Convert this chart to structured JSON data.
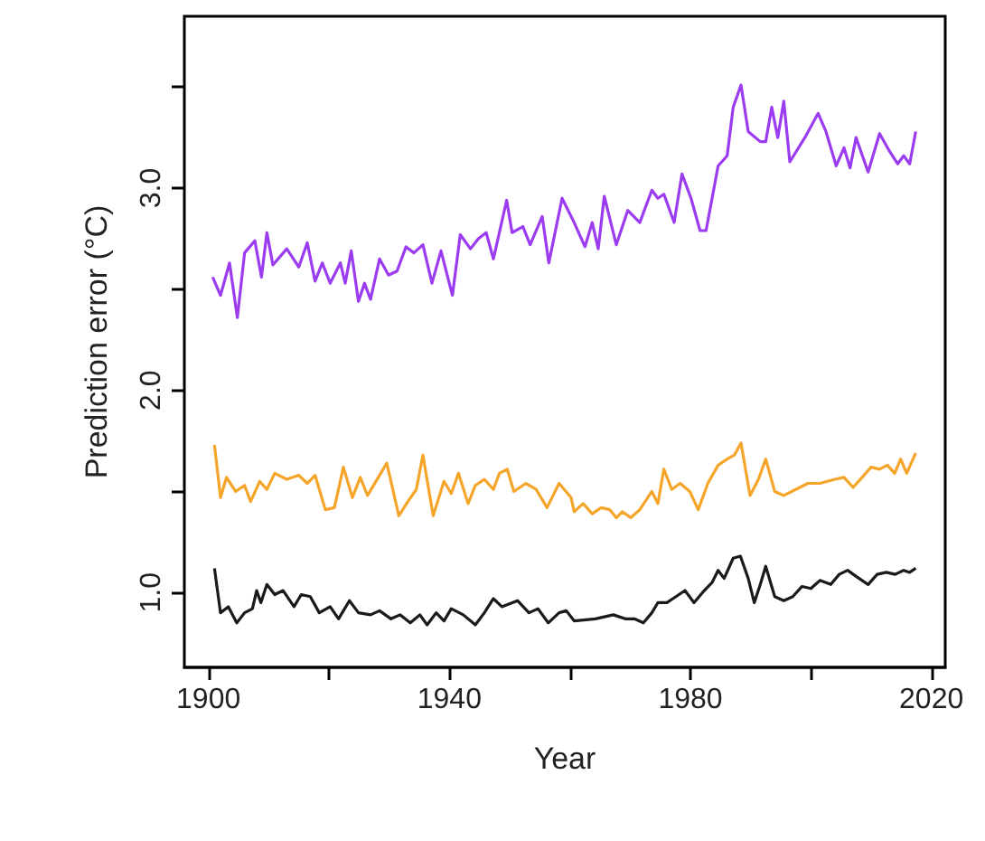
{
  "chart_data": {
    "type": "line",
    "xlabel": "Year",
    "ylabel": "Prediction error (°C)",
    "xlim": [
      1896,
      2022.3
    ],
    "ylim": [
      0.63,
      3.85
    ],
    "xticks": [
      1900,
      {
        "value": 1920,
        "label": null
      },
      1940,
      {
        "value": 1960,
        "label": null
      },
      1980,
      {
        "value": 2000,
        "label": null
      },
      2020
    ],
    "yticks": [
      {
        "value": 1,
        "label": "1.0"
      },
      {
        "value": 1.5,
        "label": null
      },
      {
        "value": 2,
        "label": "2.0"
      },
      {
        "value": 2.5,
        "label": null
      },
      {
        "value": 3,
        "label": "3.0"
      },
      {
        "value": 3.5,
        "label": null
      }
    ],
    "grid": false,
    "marker": "none",
    "series": [
      {
        "color": "#9b3cf0",
        "x": [
          1900.7,
          1902,
          1903.5,
          1904.8,
          1906,
          1907.7,
          1908.8,
          1909.7,
          1910.7,
          1913,
          1915,
          1916.4,
          1917.7,
          1918.9,
          1920.2,
          1921.9,
          1922.7,
          1923.7,
          1924.9,
          1925.9,
          1926.9,
          1928.4,
          1929.9,
          1931.3,
          1932.8,
          1934.1,
          1935.6,
          1937.1,
          1938.6,
          1940.5,
          1941.8,
          1943.5,
          1944.8,
          1946.1,
          1947.3,
          1949.5,
          1950.4,
          1952.2,
          1953.4,
          1955.4,
          1956.5,
          1958.7,
          1960.7,
          1962.5,
          1963.7,
          1964.7,
          1965.7,
          1967.7,
          1969.6,
          1971.6,
          1973.6,
          1974.6,
          1975.6,
          1977.3,
          1978.6,
          1980.1,
          1981.6,
          1982.6,
          1984.6,
          1986.1,
          1987.1,
          1988.4,
          1989.6,
          1991.6,
          1992.5,
          1993.5,
          1994.5,
          1995.5,
          1996.5,
          1999,
          2001.2,
          2002.5,
          2004.2,
          2005.5,
          2006.5,
          2007.5,
          2009.5,
          2011.4,
          2012.9,
          2014.4,
          2015.4,
          2016.4,
          2017.4
        ],
        "values": [
          2.56,
          2.47,
          2.63,
          2.36,
          2.68,
          2.74,
          2.56,
          2.78,
          2.62,
          2.7,
          2.61,
          2.73,
          2.54,
          2.63,
          2.53,
          2.63,
          2.53,
          2.69,
          2.44,
          2.53,
          2.45,
          2.65,
          2.57,
          2.59,
          2.71,
          2.68,
          2.72,
          2.53,
          2.69,
          2.47,
          2.77,
          2.7,
          2.75,
          2.78,
          2.65,
          2.94,
          2.78,
          2.81,
          2.72,
          2.86,
          2.63,
          2.95,
          2.83,
          2.71,
          2.83,
          2.7,
          2.96,
          2.72,
          2.89,
          2.83,
          2.99,
          2.95,
          2.97,
          2.83,
          3.07,
          2.95,
          2.79,
          2.79,
          3.11,
          3.16,
          3.4,
          3.51,
          3.28,
          3.23,
          3.23,
          3.4,
          3.25,
          3.43,
          3.13,
          3.25,
          3.37,
          3.28,
          3.11,
          3.2,
          3.1,
          3.25,
          3.08,
          3.27,
          3.19,
          3.12,
          3.16,
          3.12,
          3.28
        ]
      },
      {
        "color": "#f5a52a",
        "x": [
          1901,
          1902,
          1903,
          1904.5,
          1906,
          1907,
          1908.5,
          1909.7,
          1911,
          1913,
          1915,
          1916.4,
          1917.7,
          1919.4,
          1920.9,
          1922.4,
          1923.9,
          1925.2,
          1926.4,
          1928.2,
          1929.6,
          1931.6,
          1933.1,
          1934.5,
          1935.6,
          1937.3,
          1939.1,
          1940.3,
          1941.5,
          1943.1,
          1944.3,
          1945.8,
          1947.3,
          1948.3,
          1949.6,
          1950.7,
          1952.7,
          1954.4,
          1956.2,
          1958.2,
          1960.2,
          1960.7,
          1962.2,
          1963.7,
          1965.2,
          1966.6,
          1967.7,
          1968.7,
          1970.1,
          1971.6,
          1973.6,
          1974.6,
          1975.6,
          1976.9,
          1978.3,
          1979.9,
          1981.3,
          1982.9,
          1984.6,
          1986.1,
          1987.3,
          1988.4,
          1989.9,
          1991.3,
          1992.5,
          1994,
          1995.5,
          1997.5,
          1999.5,
          2001.5,
          2004,
          2005.5,
          2007,
          2008.5,
          2010,
          2011.4,
          2012.7,
          2013.9,
          2014.9,
          2015.9,
          2017.4
        ],
        "values": [
          1.73,
          1.47,
          1.57,
          1.5,
          1.53,
          1.45,
          1.55,
          1.51,
          1.59,
          1.56,
          1.58,
          1.54,
          1.58,
          1.41,
          1.42,
          1.62,
          1.47,
          1.57,
          1.48,
          1.57,
          1.64,
          1.38,
          1.45,
          1.51,
          1.68,
          1.38,
          1.55,
          1.49,
          1.59,
          1.44,
          1.53,
          1.56,
          1.51,
          1.59,
          1.61,
          1.5,
          1.54,
          1.51,
          1.42,
          1.54,
          1.47,
          1.4,
          1.44,
          1.39,
          1.42,
          1.41,
          1.37,
          1.4,
          1.37,
          1.41,
          1.5,
          1.44,
          1.61,
          1.51,
          1.54,
          1.5,
          1.41,
          1.54,
          1.63,
          1.66,
          1.68,
          1.74,
          1.48,
          1.56,
          1.66,
          1.5,
          1.48,
          1.51,
          1.54,
          1.54,
          1.56,
          1.57,
          1.52,
          1.57,
          1.62,
          1.61,
          1.63,
          1.59,
          1.66,
          1.59,
          1.69
        ]
      },
      {
        "color": "#1a1a1a",
        "x": [
          1901,
          1902,
          1903.3,
          1904.7,
          1906,
          1907.3,
          1908,
          1908.7,
          1909.7,
          1911,
          1912.4,
          1914.2,
          1915.4,
          1916.9,
          1918.4,
          1920.2,
          1921.6,
          1923.4,
          1924.9,
          1926.9,
          1928.4,
          1930.3,
          1931.8,
          1933.5,
          1935.1,
          1936.3,
          1937.8,
          1939.1,
          1940.3,
          1942.3,
          1944.3,
          1945.8,
          1947.3,
          1948.7,
          1951.3,
          1953.2,
          1954.7,
          1956.4,
          1958.2,
          1959.4,
          1960.7,
          1964.2,
          1967.2,
          1969.2,
          1970.7,
          1972.2,
          1973.6,
          1974.6,
          1976.1,
          1977.6,
          1979.1,
          1980.6,
          1982.3,
          1983.6,
          1984.6,
          1985.6,
          1987.1,
          1988.3,
          1989.6,
          1990.6,
          1991.6,
          1992.5,
          1994,
          1995.5,
          1997,
          1998.5,
          2000,
          2001.5,
          2003.3,
          2004.7,
          2006.1,
          2007.5,
          2009.5,
          2011,
          2012.5,
          2014,
          2015.4,
          2016.4,
          2017.4
        ],
        "values": [
          1.12,
          0.9,
          0.93,
          0.85,
          0.9,
          0.92,
          1.01,
          0.95,
          1.04,
          0.99,
          1.01,
          0.93,
          0.99,
          0.98,
          0.9,
          0.93,
          0.87,
          0.96,
          0.9,
          0.89,
          0.91,
          0.87,
          0.89,
          0.85,
          0.89,
          0.84,
          0.9,
          0.86,
          0.92,
          0.89,
          0.84,
          0.9,
          0.97,
          0.93,
          0.96,
          0.9,
          0.92,
          0.85,
          0.9,
          0.91,
          0.86,
          0.87,
          0.89,
          0.87,
          0.87,
          0.85,
          0.9,
          0.95,
          0.95,
          0.98,
          1.01,
          0.95,
          1.01,
          1.05,
          1.11,
          1.07,
          1.17,
          1.18,
          1.07,
          0.95,
          1.04,
          1.13,
          0.98,
          0.96,
          0.98,
          1.03,
          1.02,
          1.06,
          1.04,
          1.09,
          1.11,
          1.08,
          1.04,
          1.09,
          1.1,
          1.09,
          1.11,
          1.1,
          1.12
        ]
      }
    ]
  }
}
